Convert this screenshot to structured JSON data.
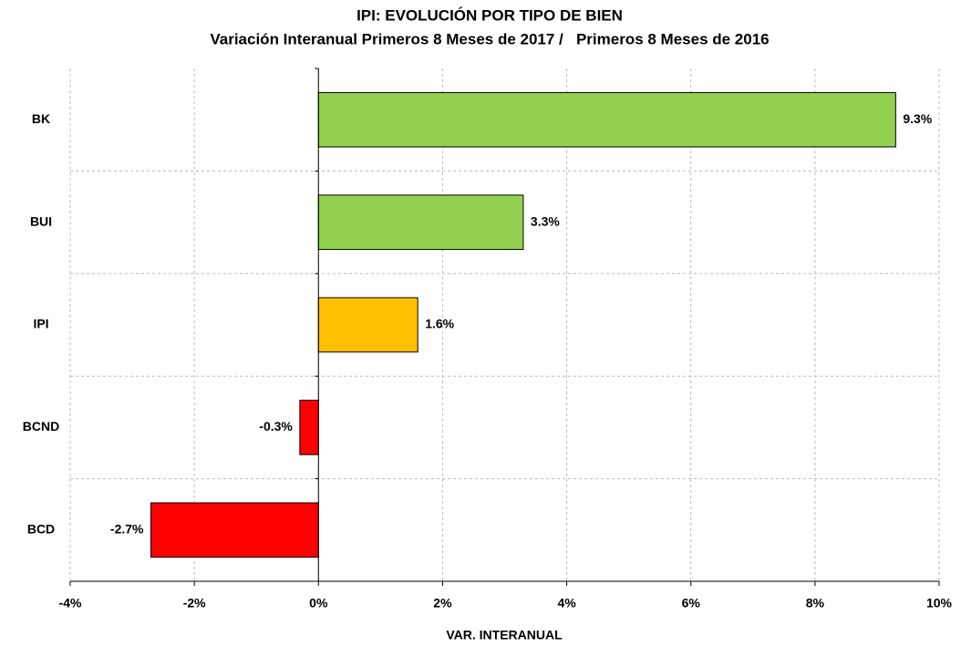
{
  "chart_data": {
    "type": "hbar",
    "title": "IPI: EVOLUCIÓN POR TIPO DE BIEN",
    "subtitle": "Variación Interanual Primeros 8 Meses de 2017 /   Primeros 8 Meses de 2016",
    "x_label": "VAR. INTERANUAL",
    "categories": [
      "BK",
      "BUI",
      "IPI",
      "BCND",
      "BCD"
    ],
    "values": [
      9.3,
      3.3,
      1.6,
      -0.3,
      -2.7
    ],
    "value_labels": [
      "9.3%",
      "3.3%",
      "1.6%",
      "-0.3%",
      "-2.7%"
    ],
    "colors": [
      "#92d050",
      "#92d050",
      "#ffc000",
      "#ff0000",
      "#ff0000"
    ],
    "xlim": [
      -4,
      10
    ],
    "xticks": [
      {
        "value": -4,
        "label": "-4%"
      },
      {
        "value": -2,
        "label": "-2%"
      },
      {
        "value": 0,
        "label": "0%"
      },
      {
        "value": 2,
        "label": "2%"
      },
      {
        "value": 4,
        "label": "4%"
      },
      {
        "value": 6,
        "label": "6%"
      },
      {
        "value": 8,
        "label": "8%"
      },
      {
        "value": 10,
        "label": "10%"
      }
    ],
    "grid": true
  }
}
